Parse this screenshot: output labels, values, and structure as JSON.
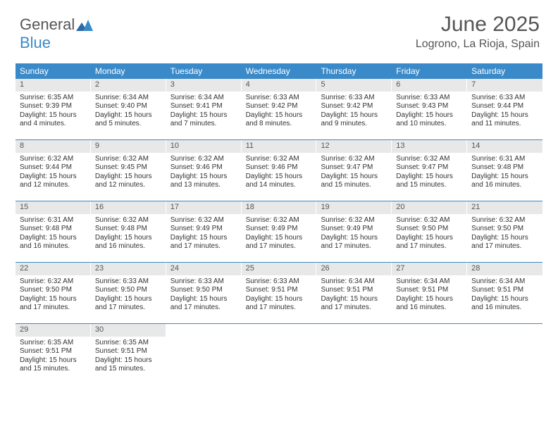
{
  "logo": {
    "part1": "General",
    "part2": "Blue"
  },
  "header": {
    "title": "June 2025",
    "location": "Logrono, La Rioja, Spain"
  },
  "colors": {
    "brand": "#3a8ac9",
    "daynum_bg": "#e8e8e8",
    "text": "#333333",
    "heading_text": "#555555"
  },
  "day_headers": [
    "Sunday",
    "Monday",
    "Tuesday",
    "Wednesday",
    "Thursday",
    "Friday",
    "Saturday"
  ],
  "weeks": [
    [
      {
        "n": "1",
        "sr": "Sunrise: 6:35 AM",
        "ss": "Sunset: 9:39 PM",
        "d1": "Daylight: 15 hours",
        "d2": "and 4 minutes."
      },
      {
        "n": "2",
        "sr": "Sunrise: 6:34 AM",
        "ss": "Sunset: 9:40 PM",
        "d1": "Daylight: 15 hours",
        "d2": "and 5 minutes."
      },
      {
        "n": "3",
        "sr": "Sunrise: 6:34 AM",
        "ss": "Sunset: 9:41 PM",
        "d1": "Daylight: 15 hours",
        "d2": "and 7 minutes."
      },
      {
        "n": "4",
        "sr": "Sunrise: 6:33 AM",
        "ss": "Sunset: 9:42 PM",
        "d1": "Daylight: 15 hours",
        "d2": "and 8 minutes."
      },
      {
        "n": "5",
        "sr": "Sunrise: 6:33 AM",
        "ss": "Sunset: 9:42 PM",
        "d1": "Daylight: 15 hours",
        "d2": "and 9 minutes."
      },
      {
        "n": "6",
        "sr": "Sunrise: 6:33 AM",
        "ss": "Sunset: 9:43 PM",
        "d1": "Daylight: 15 hours",
        "d2": "and 10 minutes."
      },
      {
        "n": "7",
        "sr": "Sunrise: 6:33 AM",
        "ss": "Sunset: 9:44 PM",
        "d1": "Daylight: 15 hours",
        "d2": "and 11 minutes."
      }
    ],
    [
      {
        "n": "8",
        "sr": "Sunrise: 6:32 AM",
        "ss": "Sunset: 9:44 PM",
        "d1": "Daylight: 15 hours",
        "d2": "and 12 minutes."
      },
      {
        "n": "9",
        "sr": "Sunrise: 6:32 AM",
        "ss": "Sunset: 9:45 PM",
        "d1": "Daylight: 15 hours",
        "d2": "and 12 minutes."
      },
      {
        "n": "10",
        "sr": "Sunrise: 6:32 AM",
        "ss": "Sunset: 9:46 PM",
        "d1": "Daylight: 15 hours",
        "d2": "and 13 minutes."
      },
      {
        "n": "11",
        "sr": "Sunrise: 6:32 AM",
        "ss": "Sunset: 9:46 PM",
        "d1": "Daylight: 15 hours",
        "d2": "and 14 minutes."
      },
      {
        "n": "12",
        "sr": "Sunrise: 6:32 AM",
        "ss": "Sunset: 9:47 PM",
        "d1": "Daylight: 15 hours",
        "d2": "and 15 minutes."
      },
      {
        "n": "13",
        "sr": "Sunrise: 6:32 AM",
        "ss": "Sunset: 9:47 PM",
        "d1": "Daylight: 15 hours",
        "d2": "and 15 minutes."
      },
      {
        "n": "14",
        "sr": "Sunrise: 6:31 AM",
        "ss": "Sunset: 9:48 PM",
        "d1": "Daylight: 15 hours",
        "d2": "and 16 minutes."
      }
    ],
    [
      {
        "n": "15",
        "sr": "Sunrise: 6:31 AM",
        "ss": "Sunset: 9:48 PM",
        "d1": "Daylight: 15 hours",
        "d2": "and 16 minutes."
      },
      {
        "n": "16",
        "sr": "Sunrise: 6:32 AM",
        "ss": "Sunset: 9:48 PM",
        "d1": "Daylight: 15 hours",
        "d2": "and 16 minutes."
      },
      {
        "n": "17",
        "sr": "Sunrise: 6:32 AM",
        "ss": "Sunset: 9:49 PM",
        "d1": "Daylight: 15 hours",
        "d2": "and 17 minutes."
      },
      {
        "n": "18",
        "sr": "Sunrise: 6:32 AM",
        "ss": "Sunset: 9:49 PM",
        "d1": "Daylight: 15 hours",
        "d2": "and 17 minutes."
      },
      {
        "n": "19",
        "sr": "Sunrise: 6:32 AM",
        "ss": "Sunset: 9:49 PM",
        "d1": "Daylight: 15 hours",
        "d2": "and 17 minutes."
      },
      {
        "n": "20",
        "sr": "Sunrise: 6:32 AM",
        "ss": "Sunset: 9:50 PM",
        "d1": "Daylight: 15 hours",
        "d2": "and 17 minutes."
      },
      {
        "n": "21",
        "sr": "Sunrise: 6:32 AM",
        "ss": "Sunset: 9:50 PM",
        "d1": "Daylight: 15 hours",
        "d2": "and 17 minutes."
      }
    ],
    [
      {
        "n": "22",
        "sr": "Sunrise: 6:32 AM",
        "ss": "Sunset: 9:50 PM",
        "d1": "Daylight: 15 hours",
        "d2": "and 17 minutes."
      },
      {
        "n": "23",
        "sr": "Sunrise: 6:33 AM",
        "ss": "Sunset: 9:50 PM",
        "d1": "Daylight: 15 hours",
        "d2": "and 17 minutes."
      },
      {
        "n": "24",
        "sr": "Sunrise: 6:33 AM",
        "ss": "Sunset: 9:50 PM",
        "d1": "Daylight: 15 hours",
        "d2": "and 17 minutes."
      },
      {
        "n": "25",
        "sr": "Sunrise: 6:33 AM",
        "ss": "Sunset: 9:51 PM",
        "d1": "Daylight: 15 hours",
        "d2": "and 17 minutes."
      },
      {
        "n": "26",
        "sr": "Sunrise: 6:34 AM",
        "ss": "Sunset: 9:51 PM",
        "d1": "Daylight: 15 hours",
        "d2": "and 17 minutes."
      },
      {
        "n": "27",
        "sr": "Sunrise: 6:34 AM",
        "ss": "Sunset: 9:51 PM",
        "d1": "Daylight: 15 hours",
        "d2": "and 16 minutes."
      },
      {
        "n": "28",
        "sr": "Sunrise: 6:34 AM",
        "ss": "Sunset: 9:51 PM",
        "d1": "Daylight: 15 hours",
        "d2": "and 16 minutes."
      }
    ],
    [
      {
        "n": "29",
        "sr": "Sunrise: 6:35 AM",
        "ss": "Sunset: 9:51 PM",
        "d1": "Daylight: 15 hours",
        "d2": "and 15 minutes."
      },
      {
        "n": "30",
        "sr": "Sunrise: 6:35 AM",
        "ss": "Sunset: 9:51 PM",
        "d1": "Daylight: 15 hours",
        "d2": "and 15 minutes."
      },
      {
        "empty": true
      },
      {
        "empty": true
      },
      {
        "empty": true
      },
      {
        "empty": true
      },
      {
        "empty": true
      }
    ]
  ]
}
